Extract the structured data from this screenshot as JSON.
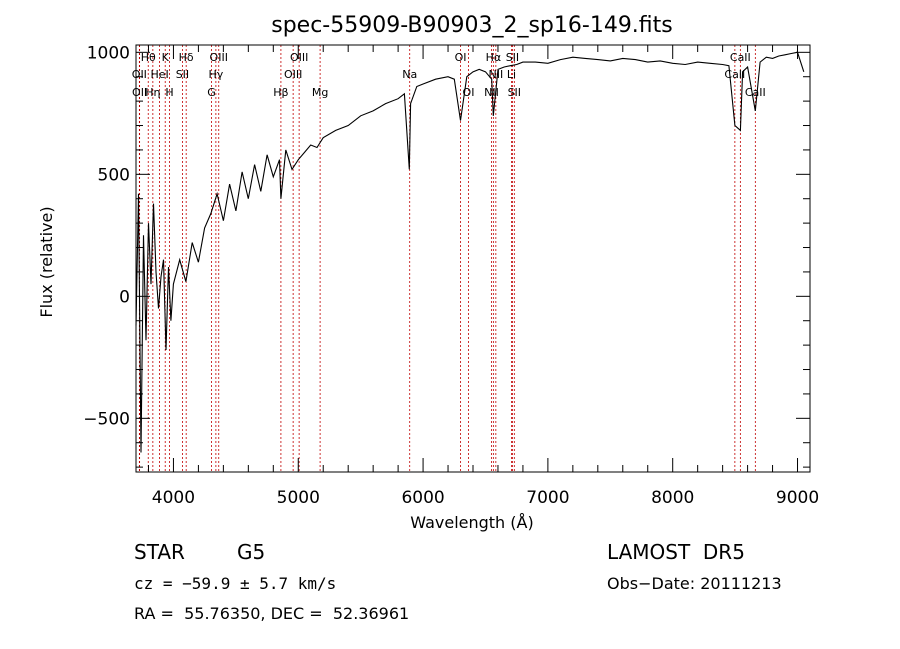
{
  "chart_data": {
    "type": "line",
    "title": "spec-55909-B90903_2_sp16-149.fits",
    "xlabel": "Wavelength (Å)",
    "ylabel": "Flux (relative)",
    "xlim": [
      3700,
      9100
    ],
    "ylim": [
      -720,
      1030
    ],
    "xticks": [
      4000,
      5000,
      6000,
      7000,
      8000,
      9000
    ],
    "yticks": [
      -500,
      0,
      500,
      1000
    ],
    "series": [
      {
        "x": [
          3700,
          3720,
          3740,
          3760,
          3780,
          3800,
          3820,
          3840,
          3860,
          3880,
          3900,
          3920,
          3940,
          3960,
          3980,
          4000,
          4050,
          4100,
          4150,
          4200,
          4250,
          4300,
          4350,
          4400,
          4450,
          4500,
          4550,
          4600,
          4650,
          4700,
          4750,
          4800,
          4850,
          4861,
          4900,
          4950,
          5000,
          5050,
          5100,
          5150,
          5200,
          5300,
          5400,
          5500,
          5600,
          5700,
          5800,
          5850,
          5890,
          5900,
          5950,
          6000,
          6100,
          6200,
          6250,
          6300,
          6350,
          6400,
          6450,
          6500,
          6550,
          6563,
          6600,
          6650,
          6700,
          6750,
          6800,
          6900,
          7000,
          7100,
          7200,
          7300,
          7400,
          7500,
          7600,
          7700,
          7800,
          7900,
          8000,
          8100,
          8200,
          8300,
          8400,
          8450,
          8498,
          8542,
          8560,
          8600,
          8662,
          8700,
          8750,
          8800,
          8850,
          8900,
          8950,
          9000,
          9050
        ],
        "values": [
          -120,
          420,
          -640,
          250,
          -180,
          300,
          50,
          380,
          100,
          -50,
          80,
          150,
          -220,
          120,
          -100,
          50,
          150,
          60,
          220,
          140,
          280,
          340,
          420,
          310,
          460,
          350,
          510,
          400,
          540,
          430,
          580,
          490,
          560,
          400,
          600,
          520,
          560,
          590,
          620,
          610,
          650,
          680,
          700,
          740,
          760,
          790,
          810,
          830,
          520,
          790,
          860,
          870,
          890,
          900,
          890,
          720,
          900,
          920,
          930,
          920,
          890,
          740,
          930,
          940,
          945,
          950,
          960,
          960,
          955,
          970,
          980,
          975,
          970,
          965,
          975,
          970,
          960,
          965,
          955,
          950,
          960,
          955,
          950,
          945,
          700,
          680,
          920,
          940,
          760,
          960,
          980,
          975,
          985,
          990,
          995,
          1000,
          920
        ]
      }
    ],
    "lines": [
      {
        "name": "Hθ",
        "wave": 3798,
        "row": 0
      },
      {
        "name": "OII",
        "wave": 3727,
        "row": 1
      },
      {
        "name": "OII",
        "wave": 3729,
        "row": 2
      },
      {
        "name": "Hη",
        "wave": 3835,
        "row": 2
      },
      {
        "name": "K",
        "wave": 3934,
        "row": 0
      },
      {
        "name": "HeI",
        "wave": 3889,
        "row": 1
      },
      {
        "name": "H",
        "wave": 3969,
        "row": 2
      },
      {
        "name": "Hδ",
        "wave": 4102,
        "row": 0
      },
      {
        "name": "SII",
        "wave": 4072,
        "row": 1
      },
      {
        "name": "OIII",
        "wave": 4363,
        "row": 0
      },
      {
        "name": "Hγ",
        "wave": 4340,
        "row": 1
      },
      {
        "name": "G",
        "wave": 4305,
        "row": 2
      },
      {
        "name": "OIII",
        "wave": 5007,
        "row": 0
      },
      {
        "name": "OIII",
        "wave": 4959,
        "row": 1
      },
      {
        "name": "Hβ",
        "wave": 4861,
        "row": 2
      },
      {
        "name": "Mg",
        "wave": 5175,
        "row": 2
      },
      {
        "name": "Na",
        "wave": 5893,
        "row": 1
      },
      {
        "name": "OI",
        "wave": 6300,
        "row": 0
      },
      {
        "name": "OI",
        "wave": 6364,
        "row": 2
      },
      {
        "name": "Hα",
        "wave": 6563,
        "row": 0
      },
      {
        "name": "SII",
        "wave": 6716,
        "row": 0
      },
      {
        "name": "NII",
        "wave": 6583,
        "row": 1
      },
      {
        "name": "Li",
        "wave": 6708,
        "row": 1
      },
      {
        "name": "NII",
        "wave": 6548,
        "row": 2
      },
      {
        "name": "SII",
        "wave": 6731,
        "row": 2
      },
      {
        "name": "CaII",
        "wave": 8542,
        "row": 0
      },
      {
        "name": "CaII",
        "wave": 8498,
        "row": 1
      },
      {
        "name": "CaII",
        "wave": 8662,
        "row": 2
      }
    ]
  },
  "info": {
    "object_class": "STAR",
    "subclass": "G5",
    "survey": "LAMOST  DR5",
    "cz": "cz = −59.9 ± 5.7 km/s",
    "obs_date": "Obs−Date: 20111213",
    "coords": "RA =  55.76350, DEC =  52.36961"
  }
}
